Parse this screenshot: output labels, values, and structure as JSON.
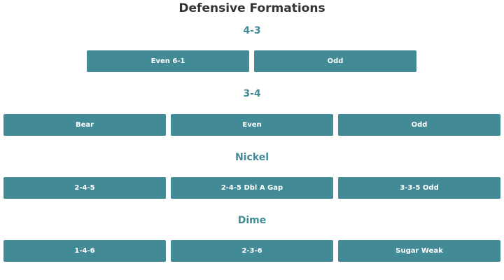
{
  "page": {
    "title": "Defensive Formations"
  },
  "sections": [
    {
      "title": "4-3",
      "buttons": [
        "Even 6-1",
        "Odd"
      ]
    },
    {
      "title": "3-4",
      "buttons": [
        "Bear",
        "Even",
        "Odd"
      ]
    },
    {
      "title": "Nickel",
      "buttons": [
        "2-4-5",
        "2-4-5 Dbl A Gap",
        "3-3-5 Odd"
      ]
    },
    {
      "title": "Dime",
      "buttons": [
        "1-4-6",
        "2-3-6",
        "Sugar Weak"
      ]
    }
  ],
  "colors": {
    "accent": "#428a96",
    "title_text": "#333333",
    "button_text": "#ffffff"
  }
}
